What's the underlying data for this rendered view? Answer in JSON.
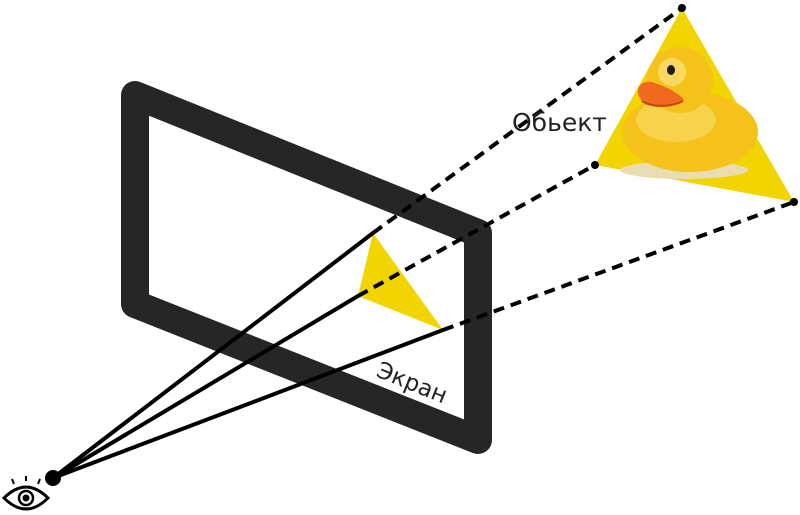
{
  "labels": {
    "object": "Обьект",
    "screen": "Экран"
  },
  "icons": {
    "viewer": "eye-icon",
    "object_picture": "rubber-duck"
  },
  "colors": {
    "frame": "#262626",
    "triangle": "#f2d500",
    "lines": "#000000",
    "duck_body": "#f4c21a",
    "duck_beak": "#ef6a1f"
  }
}
